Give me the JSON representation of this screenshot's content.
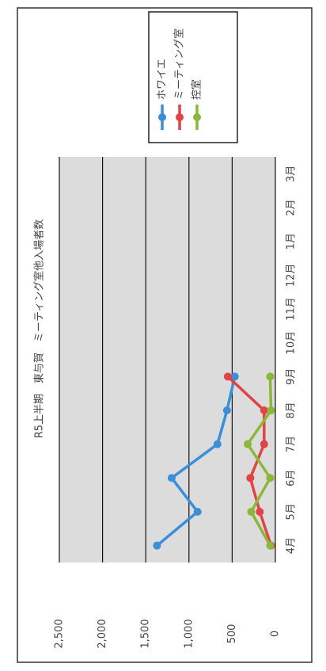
{
  "chart_data": {
    "type": "line",
    "title": "R5上半期　東与賀　ミーティング室他入場者数",
    "categories": [
      "4月",
      "5月",
      "6月",
      "7月",
      "8月",
      "9月",
      "10月",
      "11月",
      "12月",
      "1月",
      "2月",
      "3月"
    ],
    "series": [
      {
        "name": "ホワイエ",
        "color": "#3b8fd9",
        "values": [
          1370,
          900,
          1200,
          670,
          560,
          470,
          null,
          null,
          null,
          null,
          null,
          null
        ]
      },
      {
        "name": "ミーティング室",
        "color": "#e04444",
        "values": [
          50,
          180,
          290,
          130,
          130,
          550,
          null,
          null,
          null,
          null,
          null,
          null
        ]
      },
      {
        "name": "控室",
        "color": "#8cb83a",
        "values": [
          60,
          280,
          60,
          320,
          50,
          60,
          null,
          null,
          null,
          null,
          null,
          null
        ]
      }
    ],
    "ylim": [
      0,
      2500
    ],
    "yticks": [
      0,
      500,
      {
        "value": 1000,
        "label": "1,000"
      },
      {
        "value": 1500,
        "label": "1,500"
      },
      {
        "value": 2000,
        "label": "2,000"
      },
      {
        "value": 2500,
        "label": "2,500"
      }
    ],
    "grid": true
  }
}
